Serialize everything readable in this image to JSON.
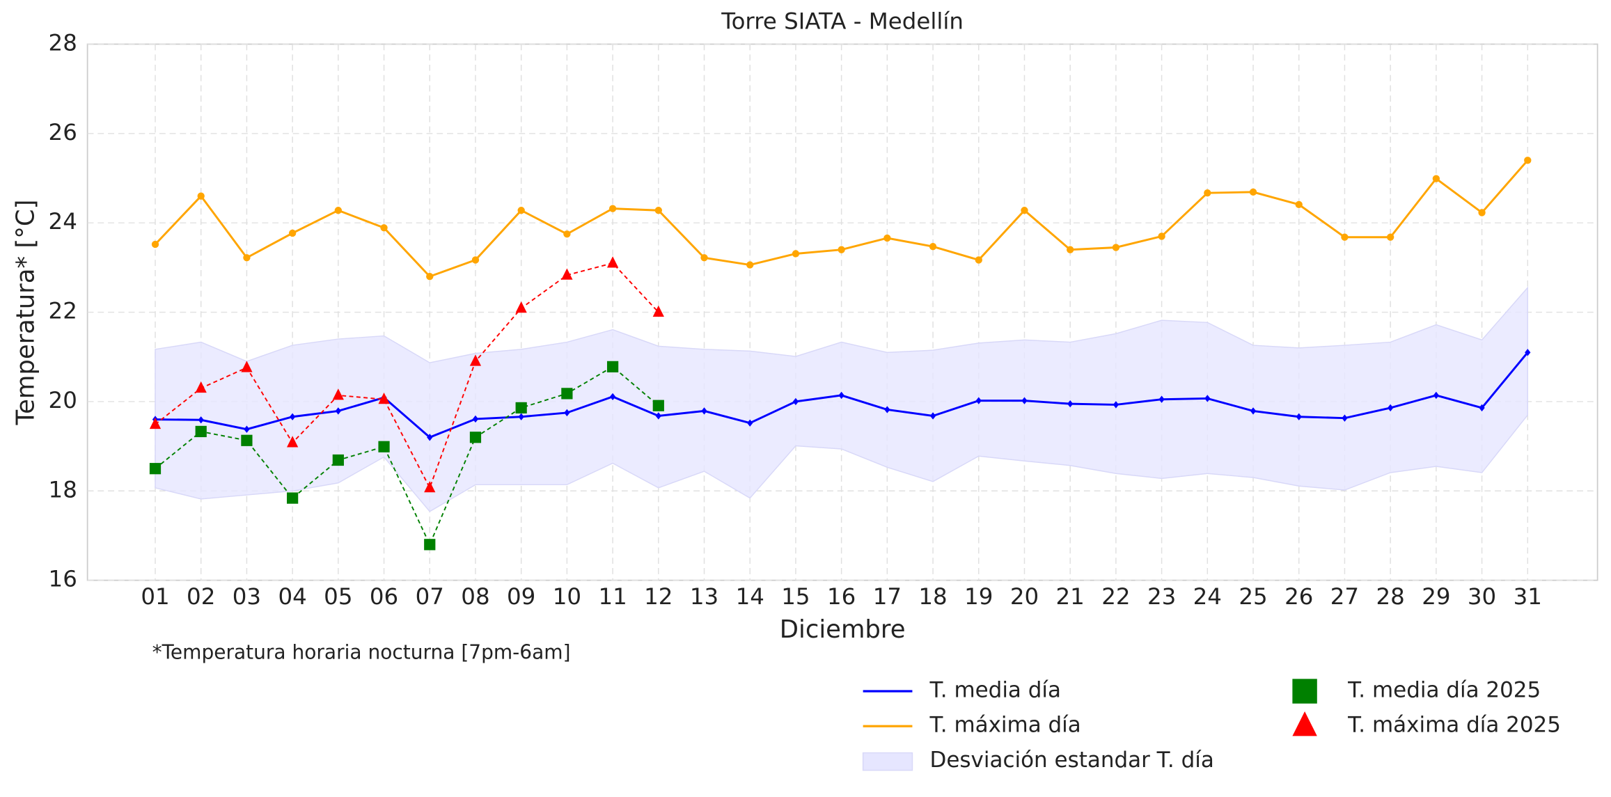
{
  "chart_data": {
    "type": "line",
    "title": "Torre SIATA - Medellín",
    "x_label": "Diciembre",
    "y_label": "Temperatura* [°C]",
    "annotation": "*Temperatura horaria nocturna [7pm-6am]",
    "categories": [
      "01",
      "02",
      "03",
      "04",
      "05",
      "06",
      "07",
      "08",
      "09",
      "10",
      "11",
      "12",
      "13",
      "14",
      "15",
      "16",
      "17",
      "18",
      "19",
      "20",
      "21",
      "22",
      "23",
      "24",
      "25",
      "26",
      "27",
      "28",
      "29",
      "30",
      "31"
    ],
    "ylim": [
      16,
      28
    ],
    "yticks": [
      16,
      18,
      20,
      22,
      24,
      26,
      28
    ],
    "grid": true,
    "legend": "below",
    "series": [
      {
        "name": "T. media día",
        "color": "#0000ff",
        "marker": "diamond",
        "linestyle": "solid",
        "values": [
          19.6,
          19.59,
          19.38,
          19.66,
          19.79,
          20.09,
          19.2,
          19.61,
          19.66,
          19.75,
          20.11,
          19.68,
          19.79,
          19.52,
          20.0,
          20.14,
          19.82,
          19.68,
          20.02,
          20.02,
          19.95,
          19.93,
          20.05,
          20.07,
          19.79,
          19.66,
          19.63,
          19.86,
          20.14,
          19.86,
          21.1
        ]
      },
      {
        "name": "T. máxima día",
        "color": "#ffa500",
        "marker": "circle",
        "linestyle": "solid",
        "values": [
          23.52,
          24.6,
          23.22,
          23.77,
          24.28,
          23.89,
          22.8,
          23.17,
          24.28,
          23.75,
          24.32,
          24.28,
          23.22,
          23.06,
          23.31,
          23.4,
          23.66,
          23.47,
          23.17,
          24.28,
          23.4,
          23.45,
          23.7,
          24.67,
          24.69,
          24.41,
          23.68,
          23.68,
          24.99,
          24.23,
          25.4
        ]
      },
      {
        "name": "T. media día 2025",
        "color": "#008000",
        "marker": "square",
        "linestyle": "dashed",
        "values": [
          18.5,
          19.33,
          19.13,
          17.84,
          18.69,
          18.99,
          16.8,
          19.2,
          19.86,
          20.18,
          20.78,
          19.91,
          null,
          null,
          null,
          null,
          null,
          null,
          null,
          null,
          null,
          null,
          null,
          null,
          null,
          null,
          null,
          null,
          null,
          null,
          null
        ]
      },
      {
        "name": "T. máxima día 2025",
        "color": "#ff0000",
        "marker": "triangle",
        "linestyle": "dashed",
        "values": [
          19.49,
          20.3,
          20.76,
          19.08,
          20.14,
          20.05,
          18.07,
          20.9,
          22.09,
          22.83,
          23.1,
          22.0,
          null,
          null,
          null,
          null,
          null,
          null,
          null,
          null,
          null,
          null,
          null,
          null,
          null,
          null,
          null,
          null,
          null,
          null,
          null
        ]
      }
    ],
    "band": {
      "name": "Desviación estandar T. día",
      "color": "#e6e6ff",
      "upper": [
        21.17,
        21.33,
        20.9,
        21.26,
        21.4,
        21.47,
        20.87,
        21.08,
        21.17,
        21.33,
        21.61,
        21.24,
        21.17,
        21.13,
        21.01,
        21.33,
        21.1,
        21.15,
        21.31,
        21.38,
        21.33,
        21.52,
        21.82,
        21.77,
        21.26,
        21.2,
        21.26,
        21.33,
        21.72,
        21.38,
        22.55
      ],
      "lower": [
        18.07,
        17.82,
        17.91,
        18.0,
        18.18,
        18.76,
        17.54,
        18.14,
        18.14,
        18.14,
        18.62,
        18.07,
        18.44,
        17.84,
        19.01,
        18.94,
        18.53,
        18.21,
        18.78,
        18.67,
        18.57,
        18.39,
        18.28,
        18.39,
        18.3,
        18.11,
        18.02,
        18.41,
        18.55,
        18.41,
        19.7
      ]
    }
  }
}
